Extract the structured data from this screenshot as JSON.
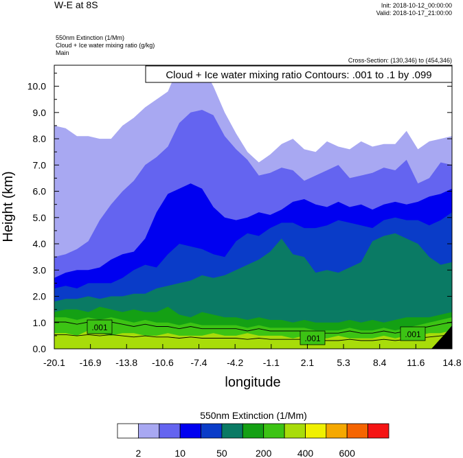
{
  "header": {
    "title": "W-E at 8S",
    "init": "Init: 2018-10-12_00:00:00",
    "valid": "Valid: 2018-10-17_21:00:00",
    "field1": "550nm Extinction   (1/Mm)",
    "field2": "Cloud + Ice water mixing ratio   (g/kg)",
    "field3": "Main",
    "cross_section": "Cross-Section: (130,346) to (454,346)",
    "contour_box": "Cloud + Ice water mixing ratio Contours: .001 to .1 by .099"
  },
  "chart_data": {
    "type": "heatmap",
    "title": "W-E at 8S",
    "xlabel": "longitude",
    "ylabel": "Height (km)",
    "x_ticks": [
      "-20.1",
      "-16.9",
      "-13.8",
      "-10.6",
      "-7.4",
      "-4.2",
      "-1.1",
      "2.1",
      "5.3",
      "8.4",
      "11.6",
      "14.8"
    ],
    "y_ticks": [
      "0.0",
      "1.0",
      "2.0",
      "3.0",
      "4.0",
      "5.0",
      "6.0",
      "7.0",
      "8.0",
      "9.0",
      "10.0"
    ],
    "xlim": [
      -20.1,
      14.8
    ],
    "ylim": [
      0,
      10.8
    ],
    "colorbar": {
      "title": "550nm Extinction  (1/Mm)",
      "colors": [
        "#ffffff",
        "#a8a8f2",
        "#6464f0",
        "#0000f0",
        "#0a3cc8",
        "#0a7a64",
        "#14a014",
        "#3cc314",
        "#a8dc0a",
        "#f0f000",
        "#f5a800",
        "#f56400",
        "#f51414"
      ],
      "labels": [
        "2",
        "10",
        "50",
        "200",
        "400",
        "600"
      ]
    },
    "contour_labels": [
      ".001",
      ".001",
      ".001"
    ],
    "bands": [
      {
        "level": 1,
        "color": "#a8a8f2",
        "top": [
          8.5,
          8.4,
          8.1,
          8.1,
          8.0,
          8.0,
          8.5,
          8.8,
          9.2,
          9.5,
          9.8,
          10.8,
          10.8,
          10.8,
          10.0,
          9.0,
          8.2,
          7.5,
          7.1,
          7.4,
          7.8,
          8.0,
          7.6,
          7.5,
          7.9,
          7.7,
          7.6,
          7.9,
          7.7,
          7.8,
          7.8,
          8.3,
          7.6,
          7.9,
          8.0,
          8.1
        ]
      },
      {
        "level": 2,
        "color": "#6464f0",
        "top": [
          3.5,
          3.6,
          3.8,
          4.1,
          4.9,
          5.5,
          6.0,
          6.4,
          7.0,
          7.3,
          7.7,
          8.6,
          9.0,
          9.1,
          8.9,
          8.1,
          7.6,
          7.2,
          6.6,
          6.7,
          6.9,
          6.8,
          6.4,
          6.6,
          6.8,
          7.0,
          6.5,
          6.6,
          6.7,
          6.9,
          6.8,
          7.2,
          6.3,
          6.5,
          7.1,
          7.0
        ]
      },
      {
        "level": 3,
        "color": "#0000f0",
        "top": [
          2.7,
          2.9,
          3.0,
          3.0,
          3.1,
          3.4,
          3.6,
          3.7,
          4.2,
          5.2,
          5.9,
          6.1,
          6.3,
          6.1,
          5.4,
          5.0,
          4.9,
          5.0,
          5.2,
          5.1,
          5.3,
          5.6,
          5.7,
          5.5,
          5.4,
          5.6,
          5.4,
          5.5,
          5.3,
          5.5,
          5.6,
          5.5,
          5.6,
          5.8,
          5.9,
          6.1
        ]
      },
      {
        "level": 4,
        "color": "#0a3cc8",
        "top": [
          2.3,
          2.4,
          2.3,
          2.5,
          2.5,
          2.5,
          2.7,
          3.0,
          3.2,
          3.1,
          3.6,
          4.0,
          3.9,
          3.8,
          3.6,
          3.5,
          4.1,
          4.4,
          4.3,
          4.6,
          4.8,
          4.8,
          4.6,
          4.6,
          4.7,
          4.9,
          4.8,
          4.7,
          4.6,
          4.9,
          5.0,
          4.9,
          4.9,
          4.7,
          4.9,
          5.2
        ]
      },
      {
        "level": 5,
        "color": "#0a7a64",
        "top": [
          1.8,
          1.9,
          1.9,
          2.0,
          1.9,
          2.0,
          2.0,
          2.1,
          2.1,
          2.3,
          2.4,
          2.5,
          2.6,
          2.8,
          2.7,
          2.8,
          3.0,
          3.2,
          3.4,
          3.7,
          4.2,
          3.6,
          3.5,
          2.9,
          3.0,
          2.9,
          3.1,
          3.3,
          4.1,
          4.3,
          4.4,
          4.2,
          4.0,
          3.5,
          3.2,
          3.3
        ]
      },
      {
        "level": 6,
        "color": "#14a014",
        "top": [
          1.4,
          1.5,
          1.5,
          1.4,
          1.6,
          1.5,
          1.4,
          1.5,
          1.4,
          1.4,
          1.6,
          1.3,
          1.2,
          1.4,
          1.3,
          1.2,
          1.2,
          1.1,
          1.2,
          1.1,
          1.1,
          1.0,
          1.1,
          1.0,
          1.0,
          1.0,
          1.1,
          1.0,
          1.1,
          1.0,
          1.1,
          1.2,
          1.2,
          1.2,
          1.3,
          1.4
        ]
      },
      {
        "level": 7,
        "color": "#3cc314",
        "top": [
          1.2,
          1.2,
          1.1,
          1.2,
          1.1,
          1.2,
          1.1,
          1.0,
          1.1,
          1.0,
          1.0,
          0.9,
          1.0,
          0.9,
          0.9,
          0.9,
          0.9,
          0.8,
          0.9,
          0.8,
          0.8,
          0.8,
          0.8,
          0.7,
          0.7,
          0.7,
          0.8,
          0.7,
          0.7,
          0.8,
          0.7,
          0.8,
          0.9,
          1.0,
          1.1,
          1.2
        ]
      },
      {
        "level": 8,
        "color": "#a8dc0a",
        "top": [
          0.6,
          0.6,
          0.5,
          0.7,
          0.6,
          0.5,
          0.6,
          0.6,
          0.5,
          0.5,
          0.6,
          0.5,
          0.5,
          0.5,
          0.6,
          0.5,
          0.5,
          0.6,
          0.5,
          0.5,
          0.5,
          0.4,
          0.5,
          0.4,
          0.4,
          0.5,
          0.4,
          0.4,
          0.4,
          0.5,
          0.4,
          0.5,
          0.5,
          0.6,
          0.6,
          0.7
        ]
      }
    ]
  }
}
